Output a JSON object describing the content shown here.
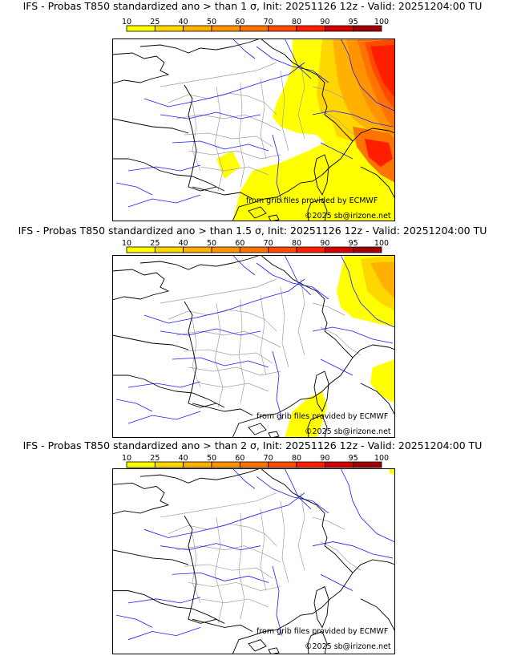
{
  "colorbar": {
    "ticks": [
      "10",
      "25",
      "40",
      "50",
      "60",
      "70",
      "80",
      "90",
      "95",
      "100"
    ],
    "colors": [
      "#ffff00",
      "#ffd700",
      "#ffb000",
      "#ff9400",
      "#ff7300",
      "#ff4a00",
      "#ff1f00",
      "#d20000",
      "#a00000"
    ]
  },
  "colors": {
    "coast": "#000000",
    "river": "#1a1aff",
    "admin": "#a0a0a0",
    "p10": "#ffff00",
    "p25": "#ffd700",
    "p40": "#ffb000",
    "p50": "#ff9400",
    "p60": "#ff7300",
    "p70": "#ff4a00",
    "p80": "#ff1f00",
    "p90": "#d20000",
    "p95": "#a00000"
  },
  "panels": [
    {
      "title": "IFS - Probas T850  standardized ano > than 1 σ, Init: 20251126 12z - Valid: 20251204:00 TU",
      "threshold": "1 σ"
    },
    {
      "title": "IFS - Probas T850  standardized ano > than 1.5 σ, Init: 20251126 12z - Valid: 20251204:00 TU",
      "threshold": "1.5 σ"
    },
    {
      "title": "IFS - Probas T850  standardized ano > than 2 σ, Init: 20251126 12z - Valid: 20251204:00 TU",
      "threshold": "2 σ"
    }
  ],
  "credits": {
    "source": "from grib files provided by ECMWF",
    "copyright": "©2025 sb@irizone.net"
  }
}
